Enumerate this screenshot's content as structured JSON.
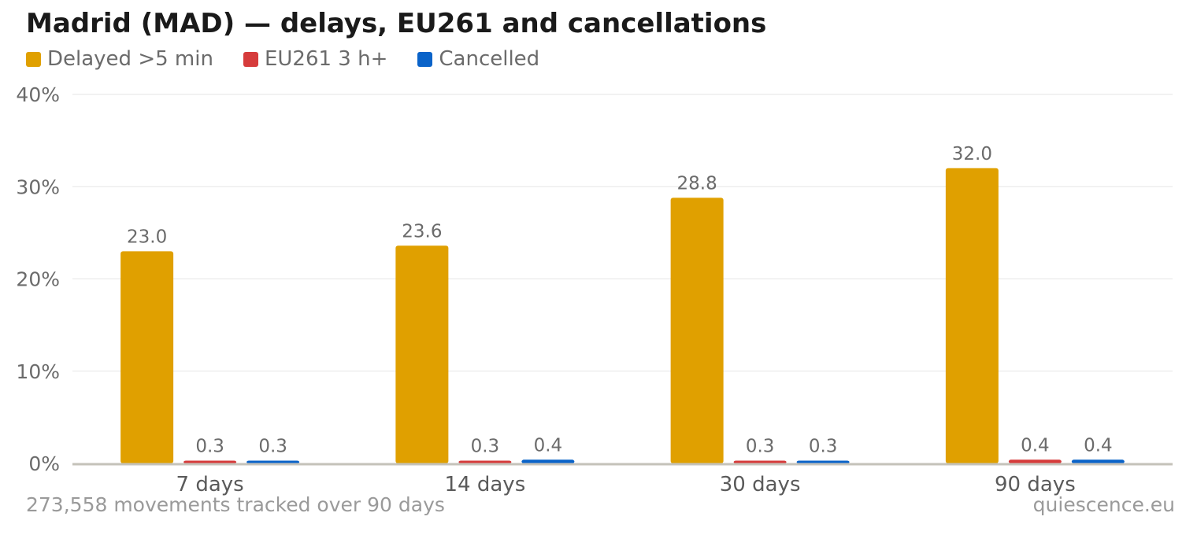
{
  "title": "Madrid (MAD) — delays, EU261 and cancellations",
  "footer": {
    "note": "273,558 movements tracked over 90 days",
    "source": "quiescence.eu"
  },
  "chart_data": {
    "type": "bar",
    "title": "Madrid (MAD) — delays, EU261 and cancellations",
    "categories": [
      "7 days",
      "14 days",
      "30 days",
      "90 days"
    ],
    "series": [
      {
        "name": "Delayed >5 min",
        "color": "#e0a000",
        "values": [
          23.0,
          23.6,
          28.8,
          32.0
        ]
      },
      {
        "name": "EU261 3 h+",
        "color": "#d63b3b",
        "values": [
          0.3,
          0.3,
          0.3,
          0.4
        ]
      },
      {
        "name": "Cancelled",
        "color": "#0a63c9",
        "values": [
          0.3,
          0.4,
          0.3,
          0.4
        ]
      }
    ],
    "ylim": [
      0,
      40
    ],
    "yticks": [
      "0%",
      "10%",
      "20%",
      "30%",
      "40%"
    ],
    "ytick_values": [
      0,
      10,
      20,
      30,
      40
    ],
    "grid": true,
    "legend_position": "top-left",
    "data_labels": true
  }
}
